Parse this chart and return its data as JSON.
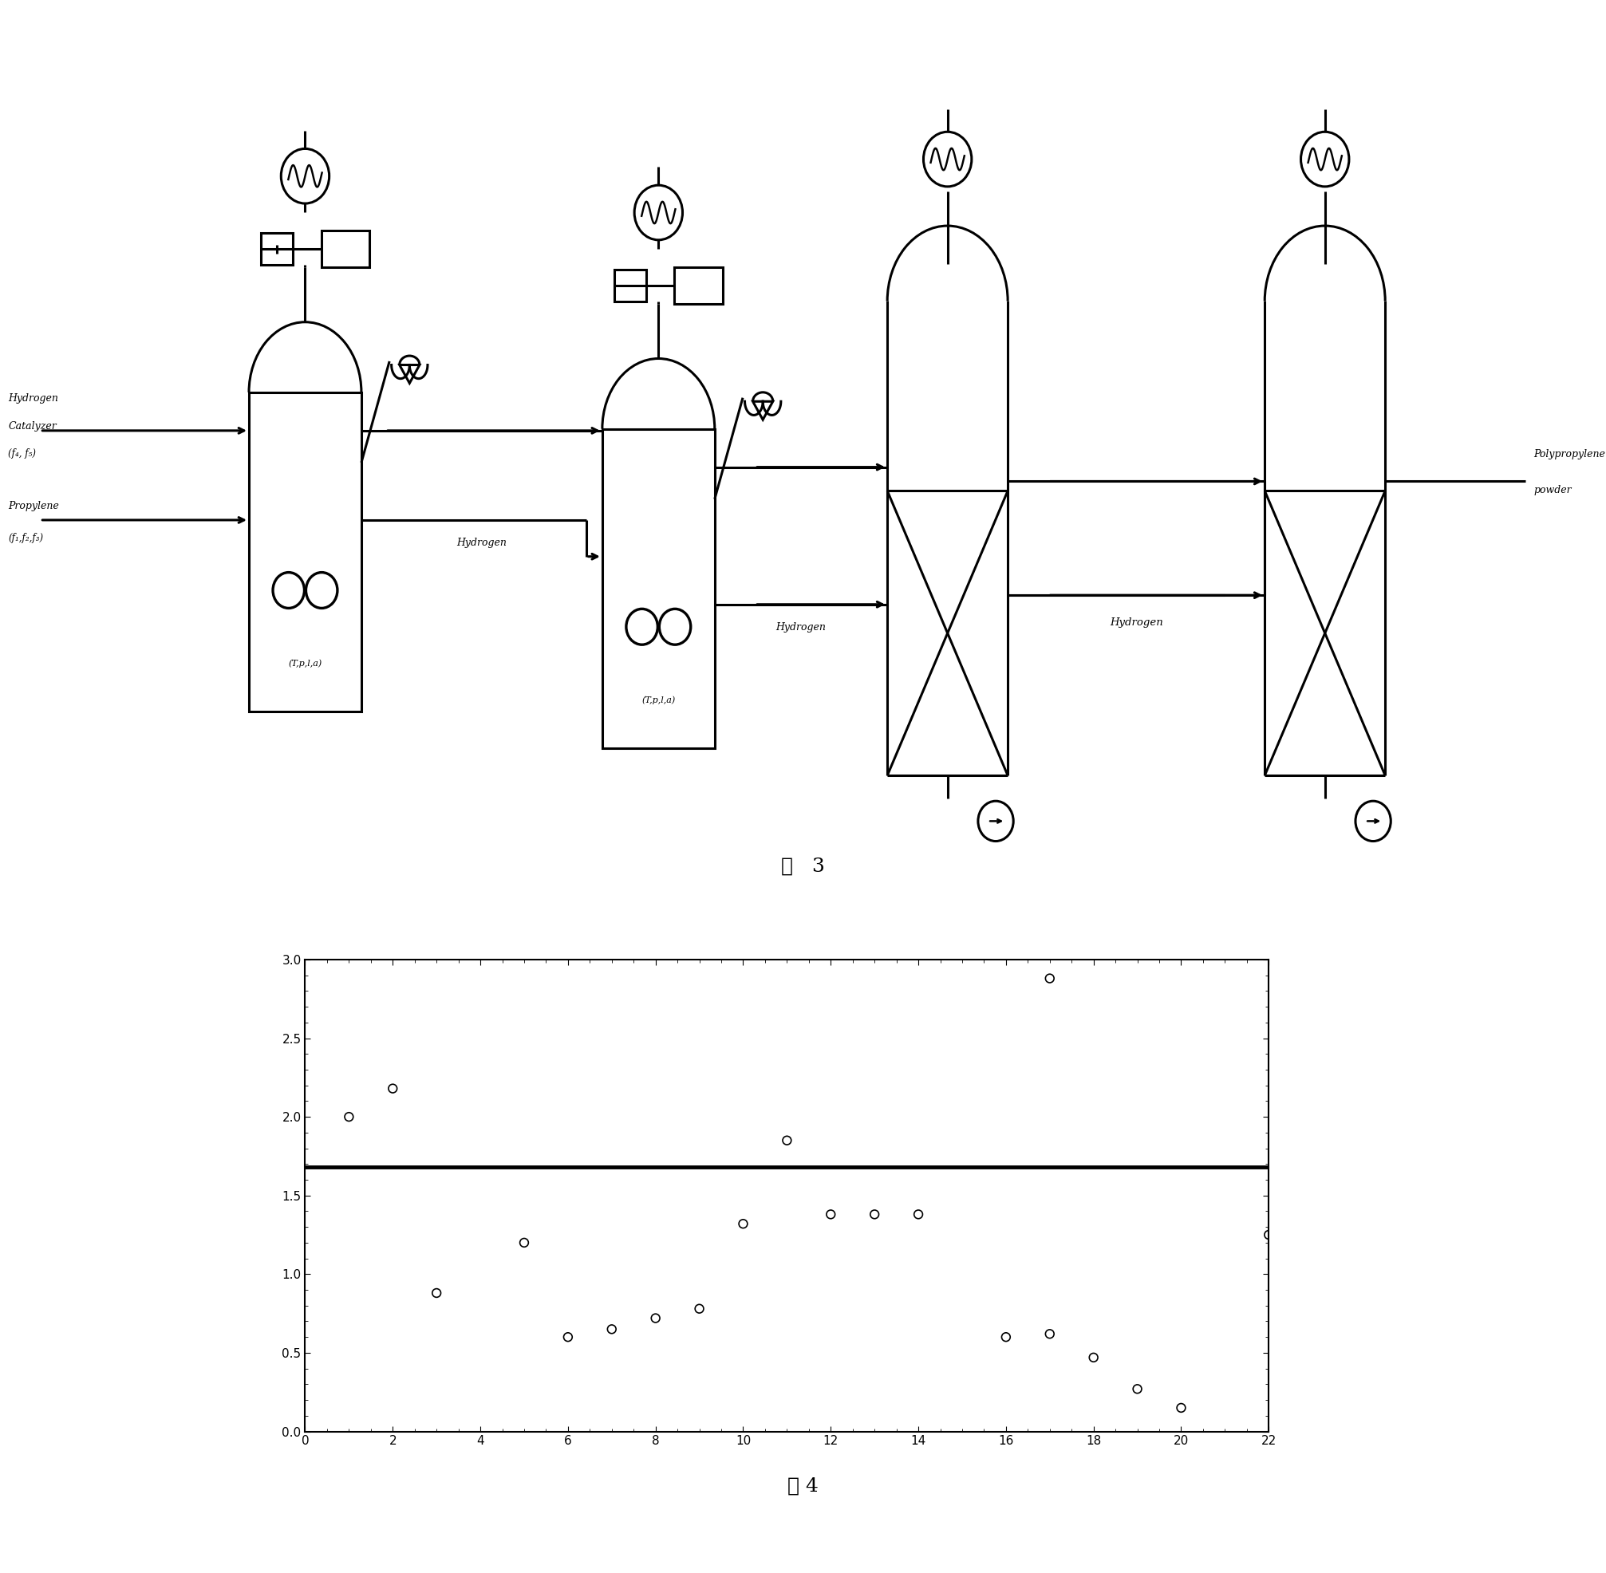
{
  "hline_y": 1.68,
  "xlim": [
    0,
    22
  ],
  "ylim": [
    0,
    3
  ],
  "xticks": [
    0,
    2,
    4,
    6,
    8,
    10,
    12,
    14,
    16,
    18,
    20,
    22
  ],
  "yticks": [
    0,
    0.5,
    1,
    1.5,
    2,
    2.5,
    3
  ],
  "scatter_size": 60,
  "hline_lw": 3.5,
  "fig3_label": "图   3",
  "fig4_label": "图 4",
  "scatter_marker_lw": 1.2,
  "scatter_point_data": [
    [
      1,
      2.0
    ],
    [
      2,
      2.18
    ],
    [
      3,
      0.88
    ],
    [
      5,
      1.2
    ],
    [
      6,
      0.6
    ],
    [
      7,
      0.65
    ],
    [
      8,
      0.72
    ],
    [
      9,
      0.78
    ],
    [
      10,
      1.32
    ],
    [
      11,
      1.85
    ],
    [
      12,
      1.38
    ],
    [
      13,
      1.38
    ],
    [
      14,
      1.38
    ],
    [
      17,
      2.88
    ],
    [
      16,
      0.6
    ],
    [
      17,
      0.62
    ],
    [
      18,
      0.47
    ],
    [
      19,
      0.27
    ],
    [
      20,
      0.15
    ],
    [
      22,
      1.25
    ]
  ],
  "lw": 2.2,
  "black": "#000000"
}
